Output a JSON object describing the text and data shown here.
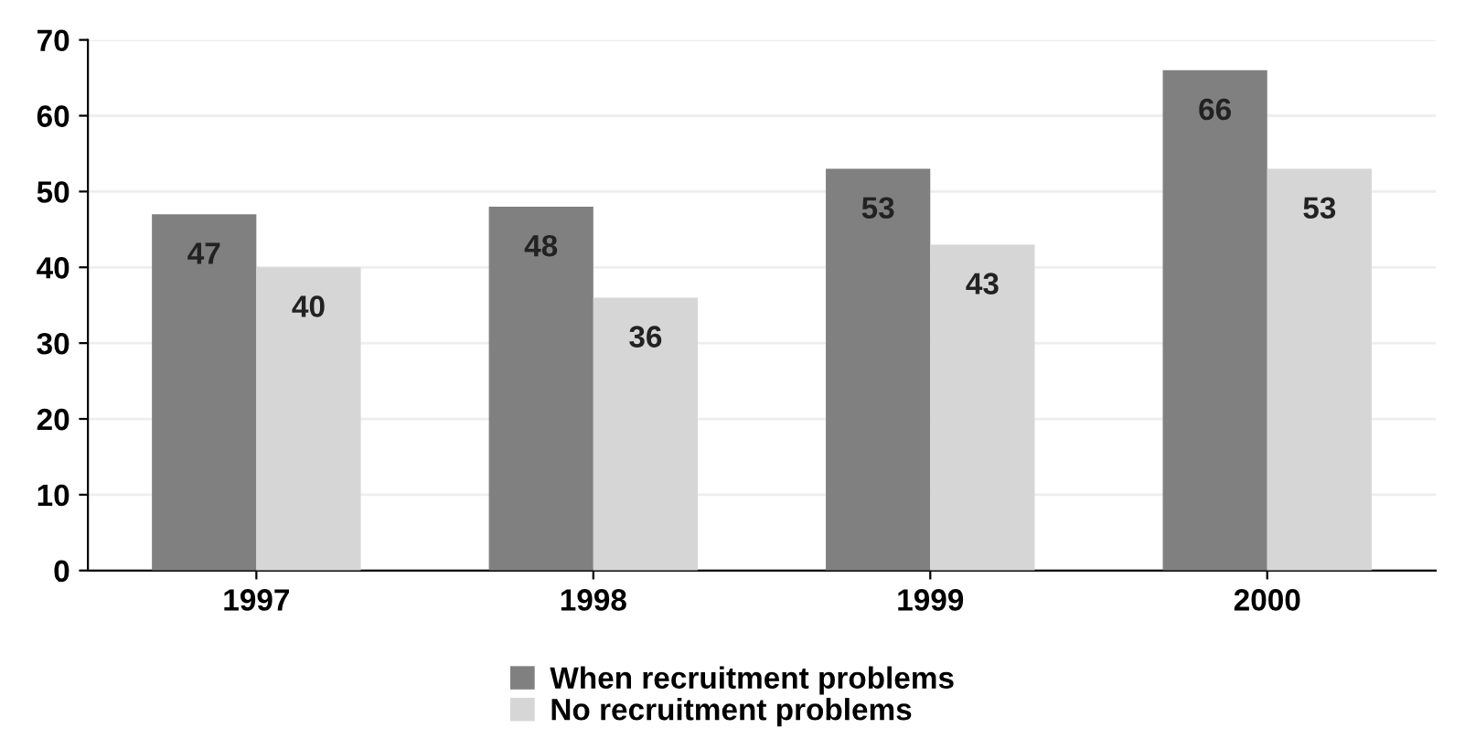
{
  "chart_data": {
    "type": "bar",
    "categories": [
      "1997",
      "1998",
      "1999",
      "2000"
    ],
    "series": [
      {
        "name": "When recruitment problems",
        "color": "#808080",
        "values": [
          47,
          48,
          53,
          66
        ]
      },
      {
        "name": "No recruitment problems",
        "color": "#d6d6d6",
        "values": [
          40,
          36,
          43,
          53
        ]
      }
    ],
    "ylim": [
      0,
      70
    ],
    "yticks": [
      0,
      10,
      20,
      30,
      40,
      50,
      60,
      70
    ],
    "grid": "y",
    "legend": "bottom",
    "data_labels": true
  }
}
